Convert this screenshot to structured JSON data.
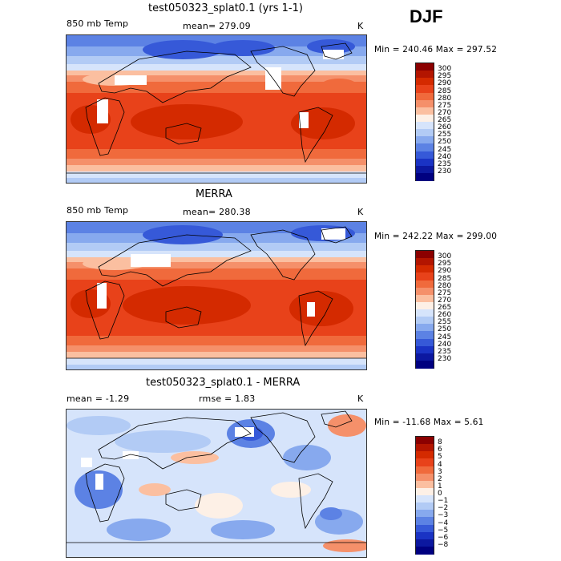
{
  "season": "DJF",
  "panels": [
    {
      "title": "test050323_splat0.1 (yrs 1-1)",
      "left_label": "850 mb Temp",
      "center_label": "mean= 279.09",
      "right_label": "K",
      "minmax": "Min = 240.46  Max = 297.52",
      "colorbar_labels": [
        "300",
        "295",
        "290",
        "285",
        "280",
        "275",
        "270",
        "265",
        "260",
        "255",
        "250",
        "245",
        "240",
        "235",
        "230"
      ],
      "colorbar_colors": [
        "#8b0000",
        "#b31500",
        "#d42a00",
        "#e8421a",
        "#f06a3c",
        "#f5906a",
        "#fbbfa0",
        "#fdf0e6",
        "#d6e4fb",
        "#b2cbf5",
        "#87a9ee",
        "#5c82e4",
        "#3659d8",
        "#1a33c4",
        "#0c18a0",
        "#000080"
      ]
    },
    {
      "title": "MERRA",
      "left_label": "850 mb Temp",
      "center_label": "mean= 280.38",
      "right_label": "K",
      "minmax": "Min = 242.22  Max = 299.00",
      "colorbar_labels": [
        "300",
        "295",
        "290",
        "285",
        "280",
        "275",
        "270",
        "265",
        "260",
        "255",
        "250",
        "245",
        "240",
        "235",
        "230"
      ],
      "colorbar_colors": [
        "#8b0000",
        "#b31500",
        "#d42a00",
        "#e8421a",
        "#f06a3c",
        "#f5906a",
        "#fbbfa0",
        "#fdf0e6",
        "#d6e4fb",
        "#b2cbf5",
        "#87a9ee",
        "#5c82e4",
        "#3659d8",
        "#1a33c4",
        "#0c18a0",
        "#000080"
      ]
    },
    {
      "title": "test050323_splat0.1 - MERRA",
      "left_label": "mean =   -1.29",
      "center_label": "rmse =    1.83",
      "right_label": "K",
      "minmax": "Min = -11.68  Max =     5.61",
      "colorbar_labels": [
        "8",
        "6",
        "5",
        "4",
        "3",
        "2",
        "1",
        "0",
        "−1",
        "−2",
        "−3",
        "−4",
        "−5",
        "−6",
        "−8"
      ],
      "colorbar_colors": [
        "#8b0000",
        "#b31500",
        "#d42a00",
        "#e8421a",
        "#f06a3c",
        "#f5906a",
        "#fbbfa0",
        "#fdf0e6",
        "#d6e4fb",
        "#b2cbf5",
        "#87a9ee",
        "#5c82e4",
        "#3659d8",
        "#1a33c4",
        "#0c18a0",
        "#000080"
      ]
    }
  ]
}
